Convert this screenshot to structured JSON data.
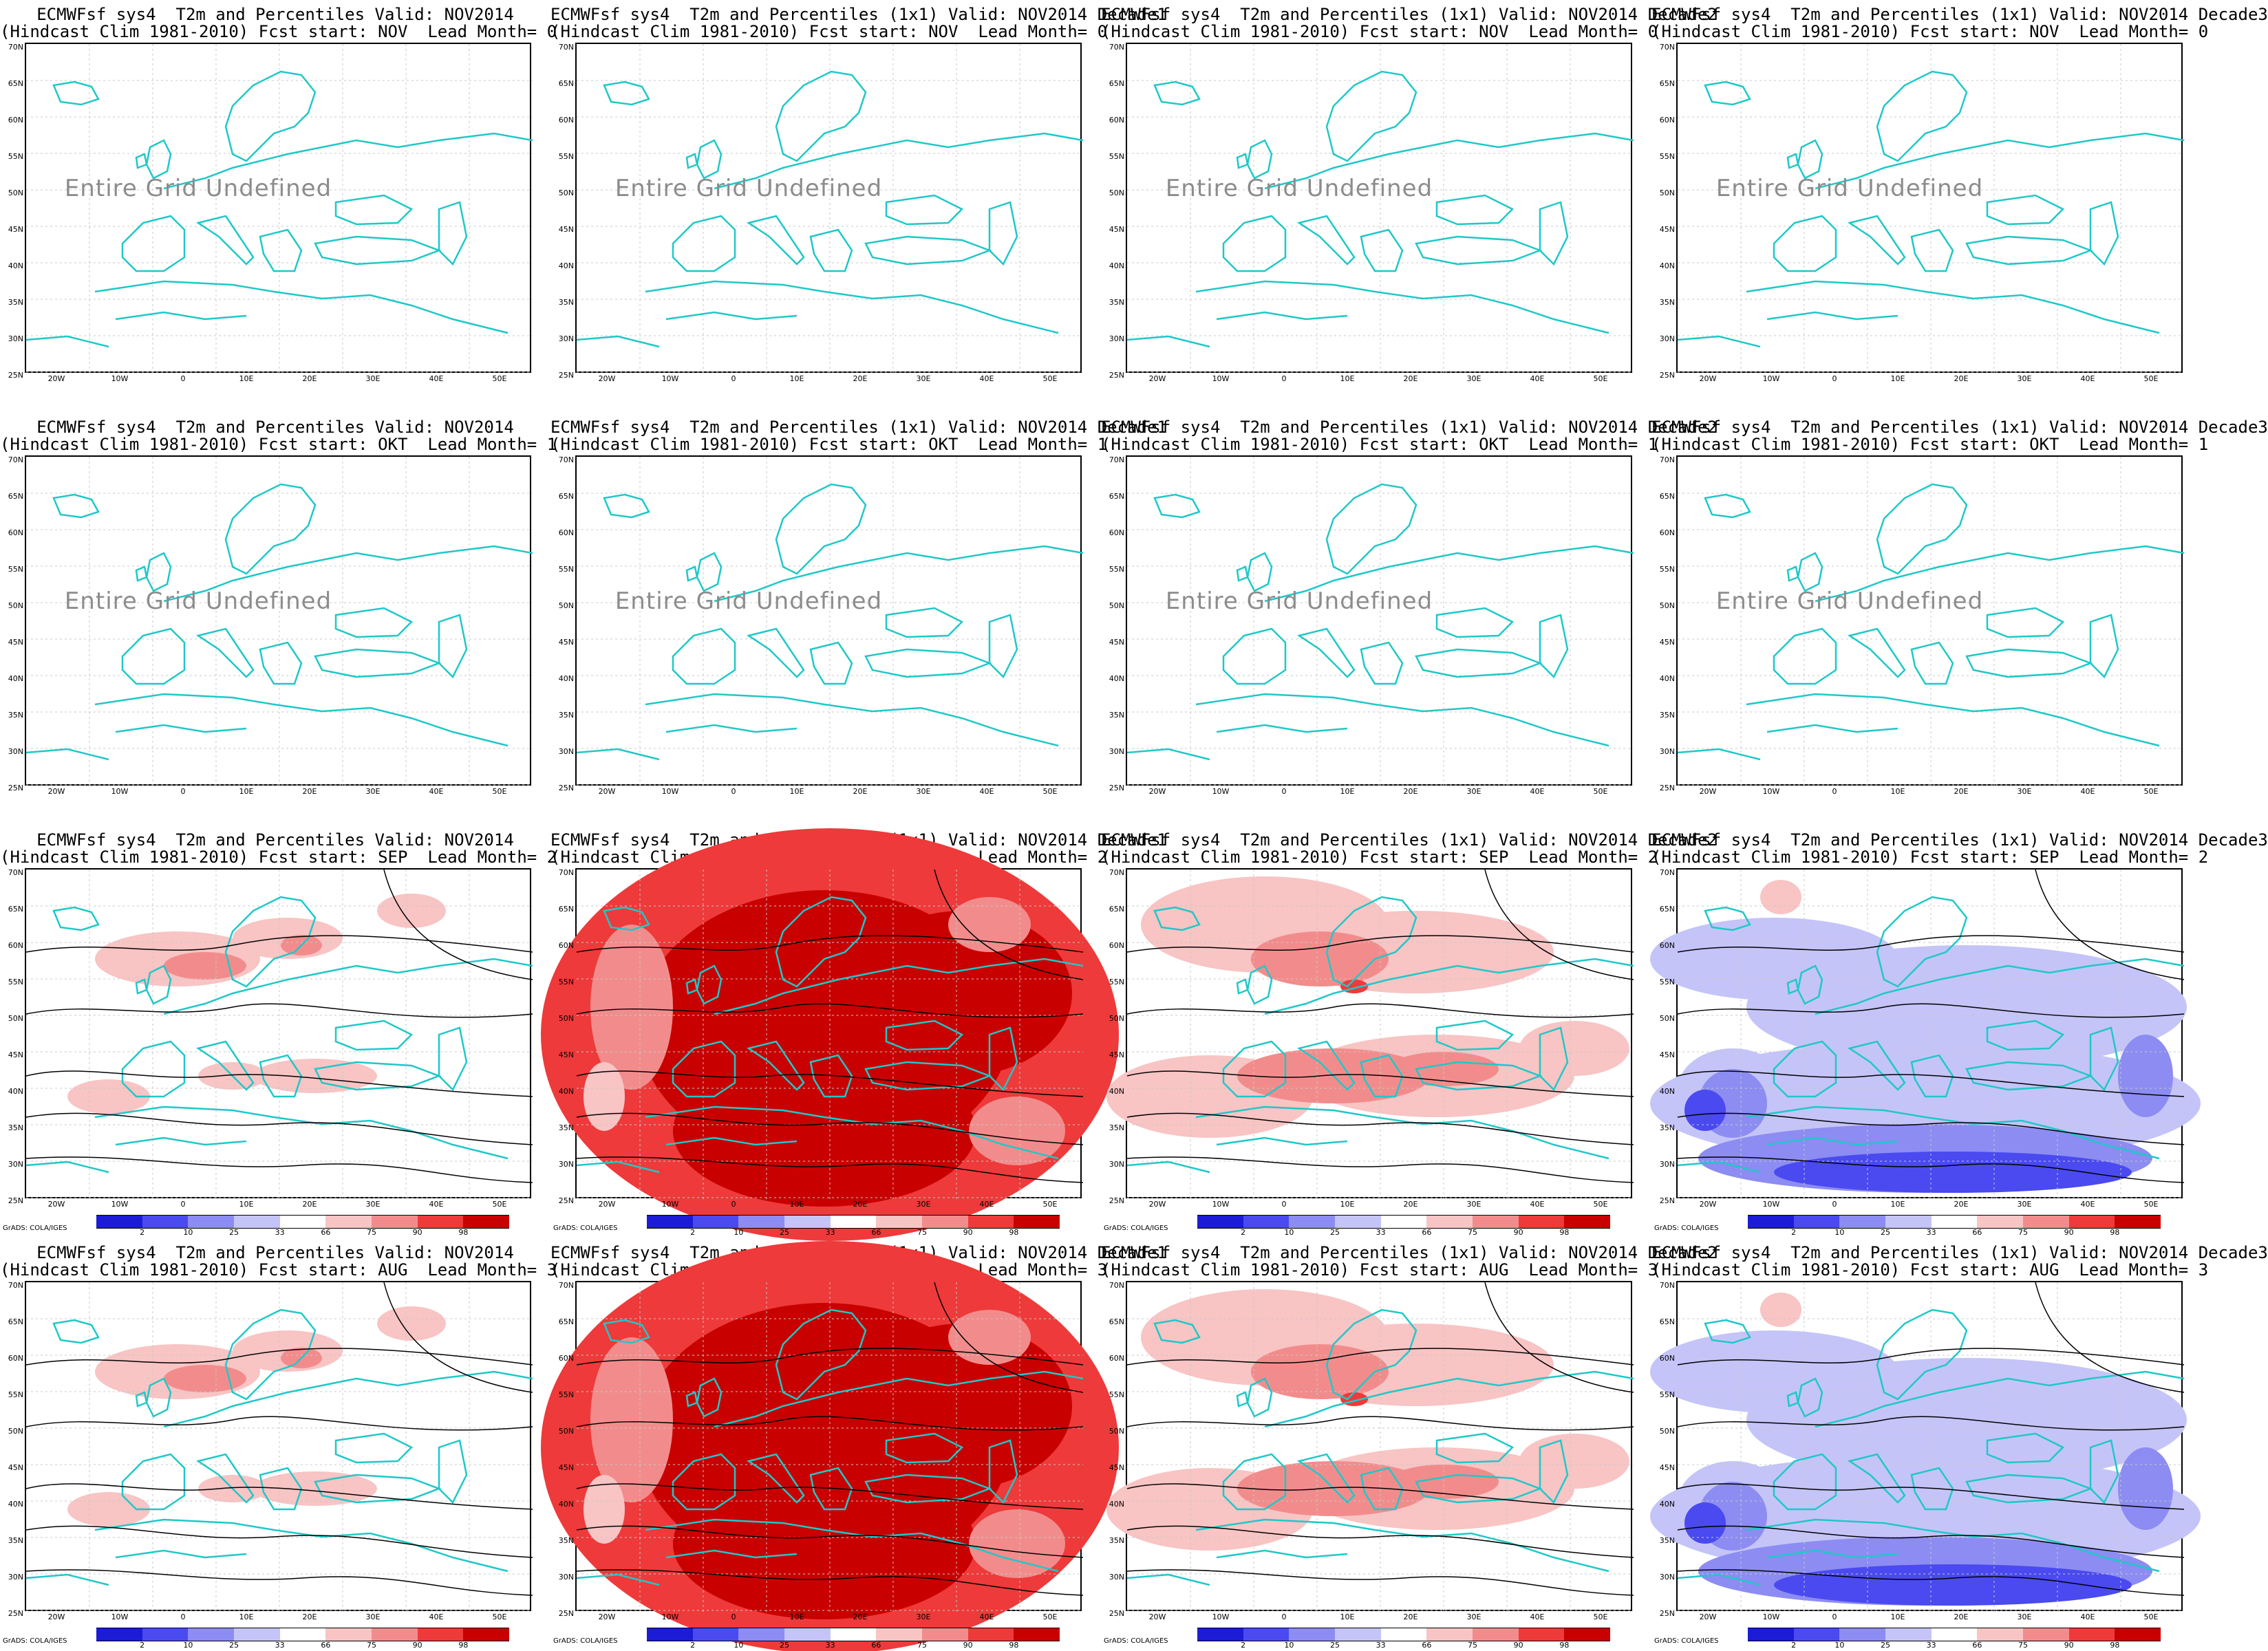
{
  "row_titles": [
    {
      "lead": "NOV",
      "lead_month": "0"
    },
    {
      "lead": "OKT",
      "lead_month": "1"
    },
    {
      "lead": "SEP",
      "lead_month": "2"
    },
    {
      "lead": "AUG",
      "lead_month": "3"
    }
  ],
  "column_titles": [
    "ECMWFsf sys4  T2m and Percentiles Valid: NOV2014",
    "ECMWFsf sys4  T2m and Percentiles (1x1) Valid: NOV2014 Decade1",
    "ECMWFsf sys4  T2m and Percentiles (1x1) Valid: NOV2014 Decade2",
    "ECMWFsf sys4  T2m and Percentiles (1x1) Valid: NOV2014 Decade3"
  ],
  "panels": [
    {
      "title1": "ECMWFsf sys4  T2m and Percentiles Valid: NOV2014",
      "title2": "(Hindcast Clim 1981-2010) Fcst start: NOV  Lead Month= 0",
      "undefined": "Entire Grid Undefined",
      "shading": "none"
    },
    {
      "title1": "ECMWFsf sys4  T2m and Percentiles (1x1) Valid: NOV2014 Decade1",
      "title2": "(Hindcast Clim 1981-2010) Fcst start: NOV  Lead Month= 0",
      "undefined": "Entire Grid Undefined",
      "shading": "none"
    },
    {
      "title1": "ECMWFsf sys4  T2m and Percentiles (1x1) Valid: NOV2014 Decade2",
      "title2": "(Hindcast Clim 1981-2010) Fcst start: NOV  Lead Month= 0",
      "undefined": "Entire Grid Undefined",
      "shading": "none"
    },
    {
      "title1": "ECMWFsf sys4  T2m and Percentiles (1x1) Valid: NOV2014 Decade3",
      "title2": "(Hindcast Clim 1981-2010) Fcst start: NOV  Lead Month= 0",
      "undefined": "Entire Grid Undefined",
      "shading": "none"
    },
    {
      "title1": "ECMWFsf sys4  T2m and Percentiles Valid: NOV2014",
      "title2": "(Hindcast Clim 1981-2010) Fcst start: OKT  Lead Month= 1",
      "undefined": "Entire Grid Undefined",
      "shading": "none"
    },
    {
      "title1": "ECMWFsf sys4  T2m and Percentiles (1x1) Valid: NOV2014 Decade1",
      "title2": "(Hindcast Clim 1981-2010) Fcst start: OKT  Lead Month= 1",
      "undefined": "Entire Grid Undefined",
      "shading": "none"
    },
    {
      "title1": "ECMWFsf sys4  T2m and Percentiles (1x1) Valid: NOV2014 Decade2",
      "title2": "(Hindcast Clim 1981-2010) Fcst start: OKT  Lead Month= 1",
      "undefined": "Entire Grid Undefined",
      "shading": "none"
    },
    {
      "title1": "ECMWFsf sys4  T2m and Percentiles (1x1) Valid: NOV2014 Decade3",
      "title2": "(Hindcast Clim 1981-2010) Fcst start: OKT  Lead Month= 1",
      "undefined": "Entire Grid Undefined",
      "shading": "none"
    },
    {
      "title1": "ECMWFsf sys4  T2m and Percentiles Valid: NOV2014",
      "title2": "(Hindcast Clim 1981-2010) Fcst start: SEP  Lead Month= 2",
      "undefined": "",
      "shading": "light-red"
    },
    {
      "title1": "ECMWFsf sys4  T2m and Percentiles (1x1) Valid: NOV2014 Decade1",
      "title2": "(Hindcast Clim 1981-2010) Fcst start: SEP  Lead Month= 2",
      "undefined": "",
      "shading": "dark-red"
    },
    {
      "title1": "ECMWFsf sys4  T2m and Percentiles (1x1) Valid: NOV2014 Decade2",
      "title2": "(Hindcast Clim 1981-2010) Fcst start: SEP  Lead Month= 2",
      "undefined": "",
      "shading": "medium-red"
    },
    {
      "title1": "ECMWFsf sys4  T2m and Percentiles (1x1) Valid: NOV2014 Decade3",
      "title2": "(Hindcast Clim 1981-2010) Fcst start: SEP  Lead Month= 2",
      "undefined": "",
      "shading": "blue"
    },
    {
      "title1": "ECMWFsf sys4  T2m and Percentiles Valid: NOV2014",
      "title2": "(Hindcast Clim 1981-2010) Fcst start: AUG  Lead Month= 3",
      "undefined": "",
      "shading": "light-red"
    },
    {
      "title1": "ECMWFsf sys4  T2m and Percentiles (1x1) Valid: NOV2014 Decade1",
      "title2": "(Hindcast Clim 1981-2010) Fcst start: AUG  Lead Month= 3",
      "undefined": "",
      "shading": "dark-red"
    },
    {
      "title1": "ECMWFsf sys4  T2m and Percentiles (1x1) Valid: NOV2014 Decade2",
      "title2": "(Hindcast Clim 1981-2010) Fcst start: AUG  Lead Month= 3",
      "undefined": "",
      "shading": "medium-red"
    },
    {
      "title1": "ECMWFsf sys4  T2m and Percentiles (1x1) Valid: NOV2014 Decade3",
      "title2": "(Hindcast Clim 1981-2010) Fcst start: AUG  Lead Month= 3",
      "undefined": "",
      "shading": "blue"
    }
  ],
  "lat_labels": [
    "70N",
    "65N",
    "60N",
    "55N",
    "50N",
    "45N",
    "40N",
    "35N",
    "30N",
    "25N"
  ],
  "lon_labels": [
    "20W",
    "10W",
    "0",
    "10E",
    "20E",
    "30E",
    "40E",
    "50E"
  ],
  "colorbar": {
    "labels": [
      "2",
      "10",
      "25",
      "33",
      "66",
      "75",
      "90",
      "98"
    ],
    "colors": [
      "#1c1cd6",
      "#4a4af0",
      "#8c8cf2",
      "#c4c4f8",
      "#ffffff",
      "#f8c4c4",
      "#f28c8c",
      "#ee3a3a",
      "#c80000"
    ]
  },
  "grads_credit": "GrADS: COLA/IGES",
  "colors": {
    "coastline": "#1fc8c8",
    "contour": "#000000",
    "undefined_text": "#8c8c8c"
  }
}
